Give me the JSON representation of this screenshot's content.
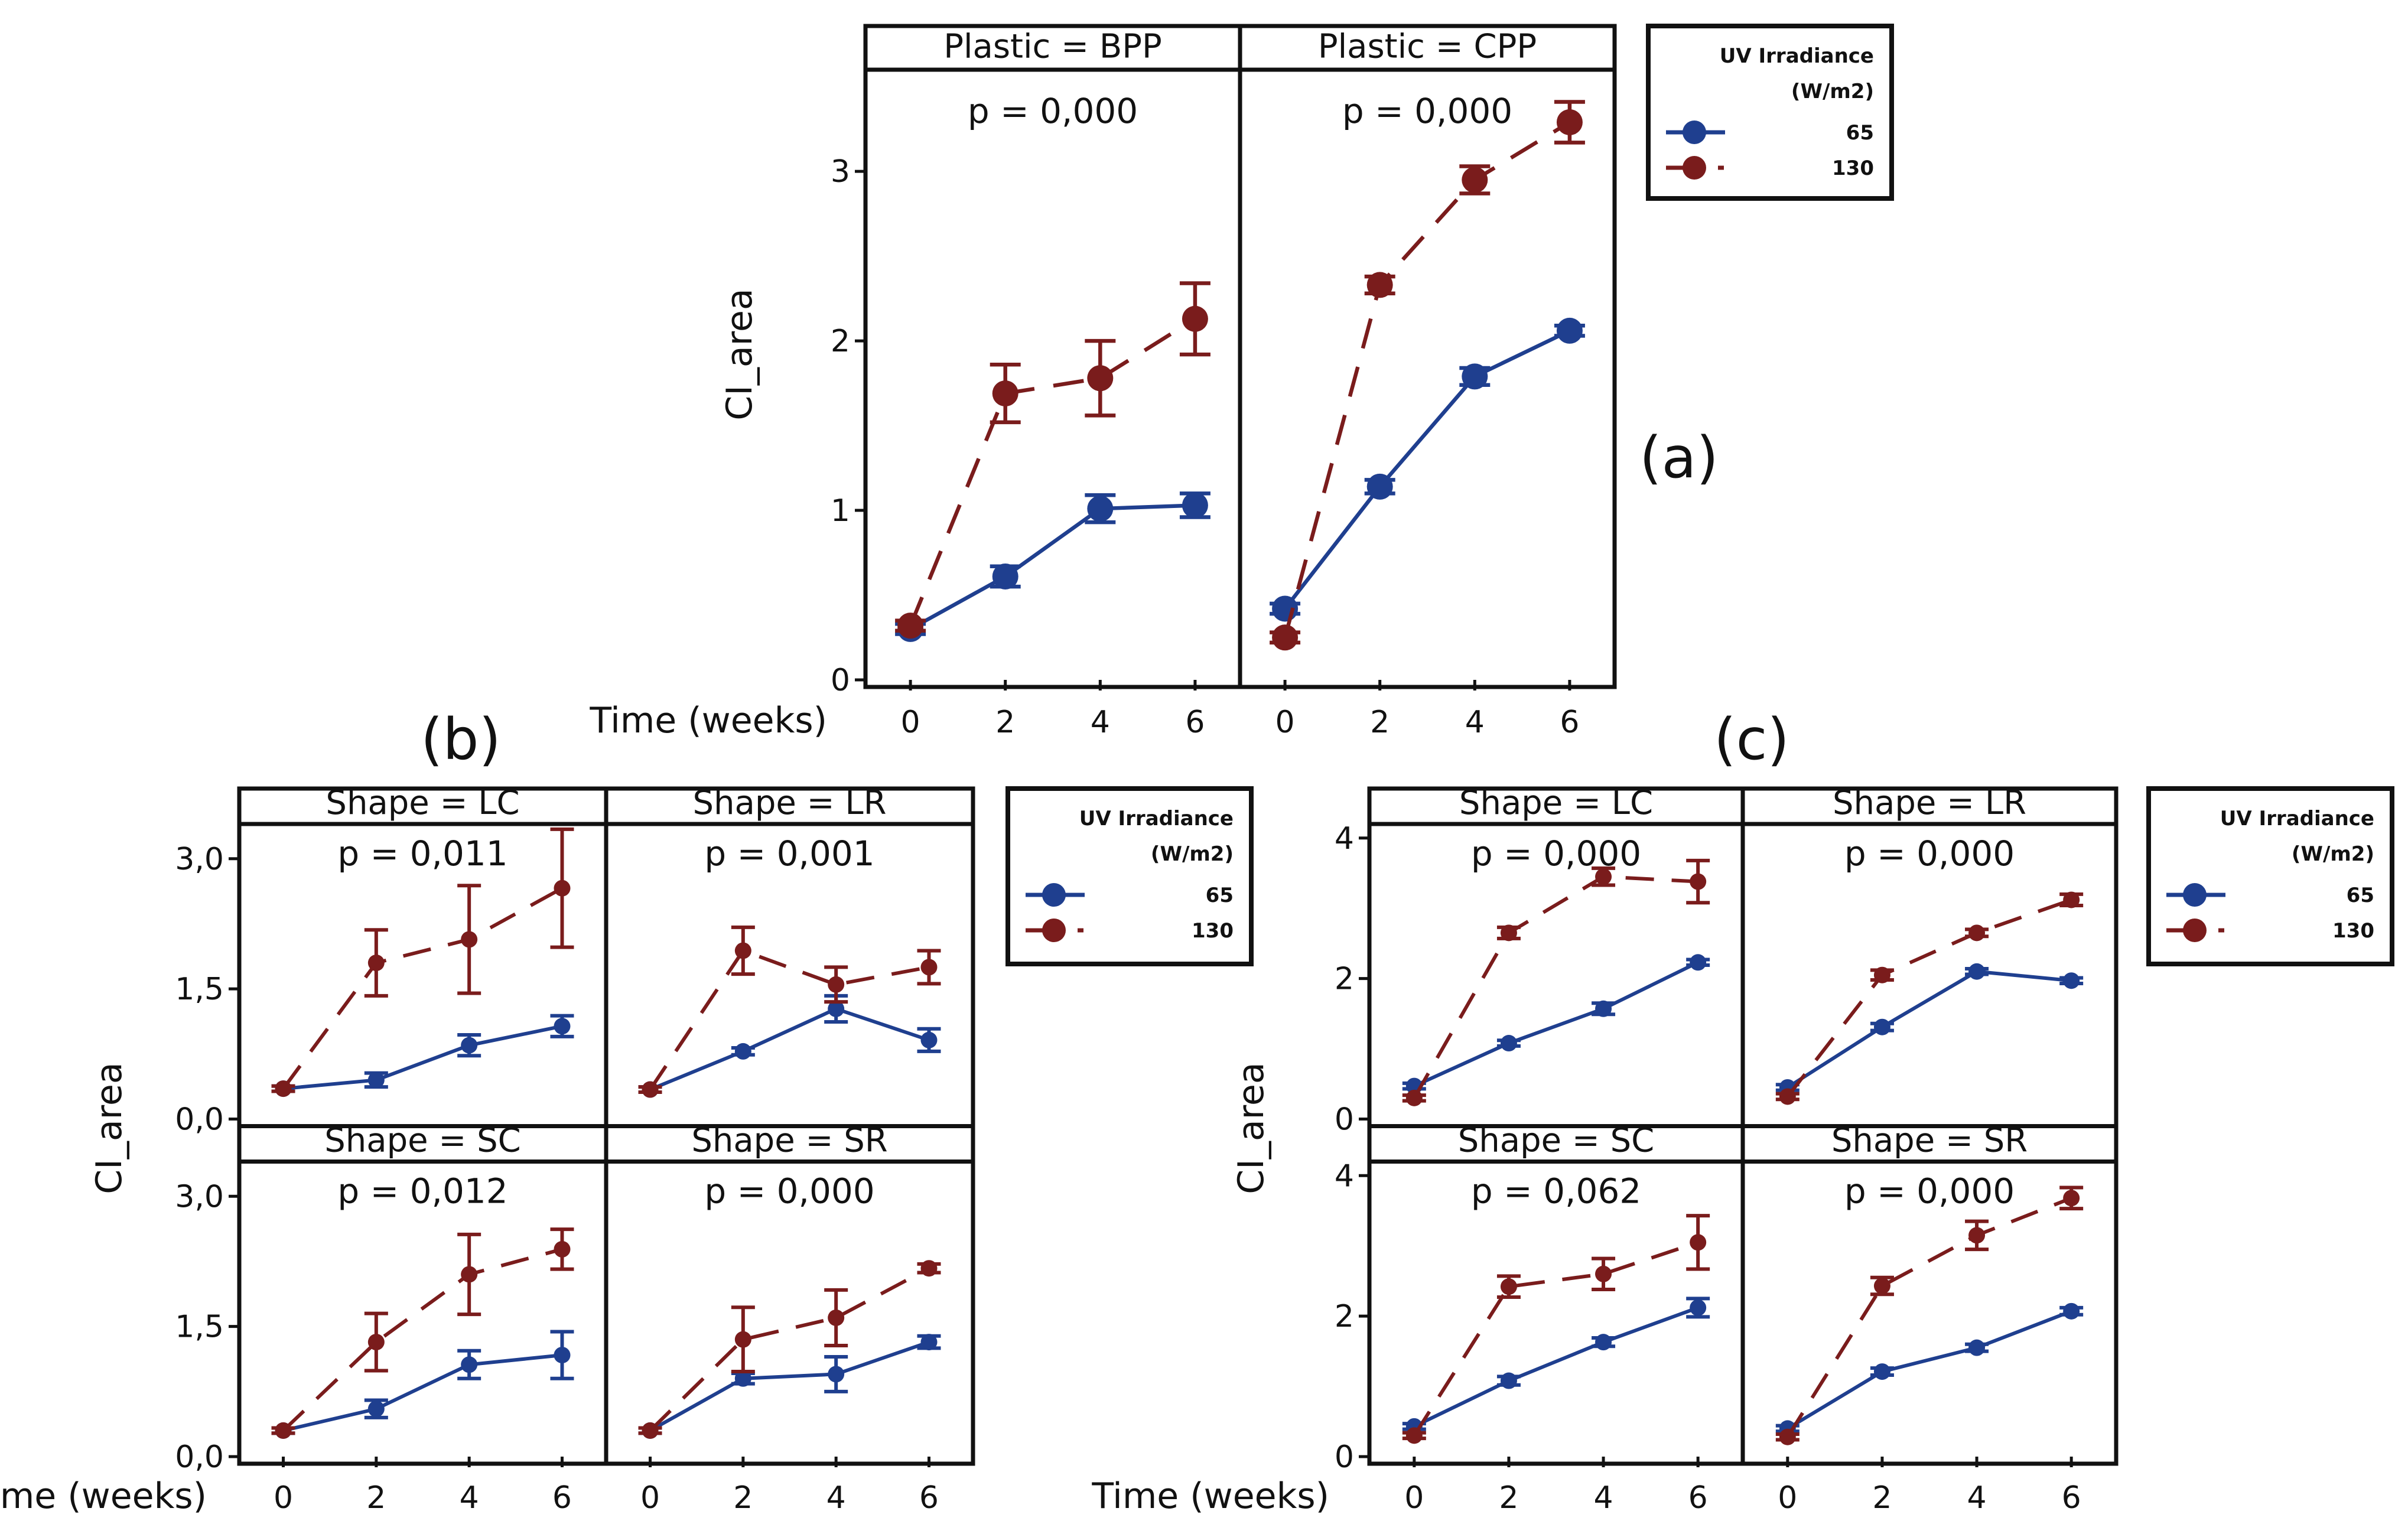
{
  "colors": {
    "uv65": "#1f3f8f",
    "uv130": "#7a1c1c",
    "frame": "#111111",
    "background": "#ffffff"
  },
  "legend": {
    "title_line1": "UV Irradiance",
    "title_line2": "(W/m2)",
    "labels": [
      "65",
      "130"
    ]
  },
  "chart_data": [
    {
      "id": "a",
      "type": "line",
      "panel_label": "(a)",
      "ylabel": "CI_area",
      "xlabel": "Time (weeks)",
      "x": [
        0,
        2,
        4,
        6
      ],
      "x_ticks": [
        "0",
        "2",
        "4",
        "6"
      ],
      "y_range": [
        0,
        3.6
      ],
      "y_ticks": [
        {
          "v": 0,
          "label": "0"
        },
        {
          "v": 1,
          "label": "1"
        },
        {
          "v": 2,
          "label": "2"
        },
        {
          "v": 3,
          "label": "3"
        }
      ],
      "facets": [
        {
          "title": "Plastic = BPP",
          "p_value": "p = 0,000",
          "series": [
            {
              "name": "65",
              "values": [
                0.3,
                0.61,
                1.01,
                1.03
              ],
              "err": [
                0.03,
                0.06,
                0.08,
                0.07
              ]
            },
            {
              "name": "130",
              "values": [
                0.32,
                1.69,
                1.78,
                2.13
              ],
              "err": [
                0.03,
                0.17,
                0.22,
                0.21
              ]
            }
          ]
        },
        {
          "title": "Plastic = CPP",
          "p_value": "p = 0,000",
          "series": [
            {
              "name": "65",
              "values": [
                0.42,
                1.14,
                1.79,
                2.06
              ],
              "err": [
                0.03,
                0.04,
                0.05,
                0.03
              ]
            },
            {
              "name": "130",
              "values": [
                0.25,
                2.33,
                2.95,
                3.29
              ],
              "err": [
                0.03,
                0.05,
                0.08,
                0.12
              ]
            }
          ]
        }
      ]
    },
    {
      "id": "b",
      "type": "line",
      "panel_label": "(b)",
      "ylabel": "CI_area",
      "xlabel": "Time (weeks)",
      "x": [
        0,
        2,
        4,
        6
      ],
      "x_ticks": [
        "0",
        "2",
        "4",
        "6"
      ],
      "y_range": [
        0,
        3.4
      ],
      "y_ticks": [
        {
          "v": 0,
          "label": "0,0"
        },
        {
          "v": 1.5,
          "label": "1,5"
        },
        {
          "v": 3.0,
          "label": "3,0"
        }
      ],
      "facets": [
        {
          "title": "Shape = LC",
          "p_value": "p = 0,011",
          "series": [
            {
              "name": "65",
              "values": [
                0.35,
                0.45,
                0.85,
                1.07
              ],
              "err": [
                0.03,
                0.08,
                0.12,
                0.12
              ]
            },
            {
              "name": "130",
              "values": [
                0.35,
                1.8,
                2.07,
                2.66
              ],
              "err": [
                0.03,
                0.38,
                0.62,
                0.68
              ]
            }
          ]
        },
        {
          "title": "Shape = LR",
          "p_value": "p = 0,001",
          "series": [
            {
              "name": "65",
              "values": [
                0.34,
                0.78,
                1.27,
                0.91
              ],
              "err": [
                0.03,
                0.04,
                0.15,
                0.13
              ]
            },
            {
              "name": "130",
              "values": [
                0.34,
                1.94,
                1.55,
                1.75
              ],
              "err": [
                0.03,
                0.27,
                0.2,
                0.19
              ]
            }
          ]
        },
        {
          "title": "Shape = SC",
          "p_value": "p = 0,012",
          "series": [
            {
              "name": "65",
              "values": [
                0.3,
                0.55,
                1.06,
                1.17
              ],
              "err": [
                0.03,
                0.1,
                0.16,
                0.27
              ]
            },
            {
              "name": "130",
              "values": [
                0.3,
                1.32,
                2.1,
                2.39
              ],
              "err": [
                0.03,
                0.33,
                0.46,
                0.23
              ]
            }
          ]
        },
        {
          "title": "Shape = SR",
          "p_value": "p = 0,000",
          "series": [
            {
              "name": "65",
              "values": [
                0.3,
                0.9,
                0.95,
                1.32
              ],
              "err": [
                0.03,
                0.06,
                0.2,
                0.07
              ]
            },
            {
              "name": "130",
              "values": [
                0.3,
                1.35,
                1.6,
                2.17
              ],
              "err": [
                0.03,
                0.37,
                0.32,
                0.05
              ]
            }
          ]
        }
      ]
    },
    {
      "id": "c",
      "type": "line",
      "panel_label": "(c)",
      "ylabel": "CI_area",
      "xlabel": "Time (weeks)",
      "x": [
        0,
        2,
        4,
        6
      ],
      "x_ticks": [
        "0",
        "2",
        "4",
        "6"
      ],
      "y_range": [
        0,
        4.2
      ],
      "y_ticks": [
        {
          "v": 0,
          "label": "0"
        },
        {
          "v": 2,
          "label": "2"
        },
        {
          "v": 4,
          "label": "4"
        }
      ],
      "facets": [
        {
          "title": "Shape = LC",
          "p_value": "p = 0,000",
          "series": [
            {
              "name": "65",
              "values": [
                0.47,
                1.08,
                1.57,
                2.23
              ],
              "err": [
                0.04,
                0.04,
                0.08,
                0.04
              ]
            },
            {
              "name": "130",
              "values": [
                0.3,
                2.65,
                3.45,
                3.38
              ],
              "err": [
                0.04,
                0.08,
                0.12,
                0.3
              ]
            }
          ]
        },
        {
          "title": "Shape = LR",
          "p_value": "p = 0,000",
          "series": [
            {
              "name": "65",
              "values": [
                0.45,
                1.31,
                2.1,
                1.97
              ],
              "err": [
                0.04,
                0.05,
                0.04,
                0.04
              ]
            },
            {
              "name": "130",
              "values": [
                0.32,
                2.05,
                2.65,
                3.12
              ],
              "err": [
                0.04,
                0.07,
                0.05,
                0.08
              ]
            }
          ]
        },
        {
          "title": "Shape = SC",
          "p_value": "p = 0,062",
          "series": [
            {
              "name": "65",
              "values": [
                0.43,
                1.08,
                1.63,
                2.12
              ],
              "err": [
                0.04,
                0.06,
                0.06,
                0.13
              ]
            },
            {
              "name": "130",
              "values": [
                0.3,
                2.42,
                2.6,
                3.05
              ],
              "err": [
                0.04,
                0.15,
                0.22,
                0.38
              ]
            }
          ]
        },
        {
          "title": "Shape = SR",
          "p_value": "p = 0,000",
          "series": [
            {
              "name": "65",
              "values": [
                0.4,
                1.21,
                1.55,
                2.07
              ],
              "err": [
                0.04,
                0.05,
                0.05,
                0.05
              ]
            },
            {
              "name": "130",
              "values": [
                0.28,
                2.43,
                3.15,
                3.68
              ],
              "err": [
                0.04,
                0.12,
                0.2,
                0.15
              ]
            }
          ]
        }
      ]
    }
  ]
}
